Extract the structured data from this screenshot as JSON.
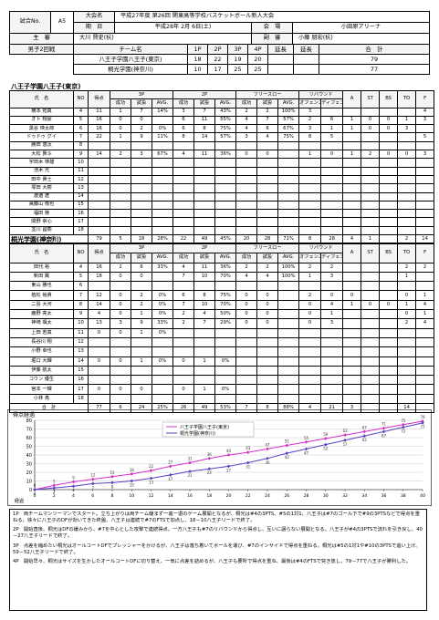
{
  "header": {
    "game_no_label": "試合No.",
    "game_no": "A5",
    "tournament_label": "大会名",
    "tournament": "平成27年度 第26回 関東高等学校バスケットボール新人大会",
    "date_label": "期　日",
    "date": "平成28年 2月 6日(土)",
    "venue_label": "会　場",
    "venue": "小田原アリーナ",
    "referee_label": "主　審",
    "referee": "大川 賢史(杭)",
    "umpire_label": "副　審",
    "umpire": "小藤 朋宏(杭)",
    "category": "男子2回戦"
  },
  "score_table": {
    "headers": [
      "チーム名",
      "1P",
      "2P",
      "3P",
      "4P",
      "延長",
      "延長",
      "合　計"
    ],
    "teams": [
      {
        "name": "八王子学園八王子(東京)",
        "periods": [
          18,
          22,
          19,
          20
        ],
        "total": 79
      },
      {
        "name": "桐光学園(神奈川)",
        "periods": [
          10,
          17,
          25,
          25
        ],
        "total": 77
      }
    ]
  },
  "box_columns": {
    "top": [
      "氏　名",
      "NO",
      "得点",
      "3P",
      "2P",
      "フリースロー",
      "リバウンド",
      "A",
      "ST",
      "BS",
      "TO",
      "F"
    ],
    "sub": [
      "成功",
      "試投",
      "AVG.",
      "成功",
      "試投",
      "AVG.",
      "成功",
      "試投",
      "AVG.",
      "オフェンス",
      "ディフェンス"
    ]
  },
  "teams": [
    {
      "title": "八王子学園八王子(東京)",
      "total_label": "合　計",
      "players": [
        {
          "name": "横本 拓真",
          "no": 4,
          "stats": [
            11,
            1,
            7,
            "14%",
            3,
            7,
            "43%",
            2,
            2,
            "100%",
            3,
            null,
            null,
            null,
            null,
            null,
            4
          ]
        },
        {
          "name": "オト 翔豪",
          "no": 5,
          "stats": [
            16,
            0,
            0,
            null,
            6,
            11,
            "55%",
            4,
            7,
            "57%",
            2,
            6,
            1,
            0,
            0,
            1,
            3
          ]
        },
        {
          "name": "黒谷 瑛太郎",
          "no": 6,
          "stats": [
            16,
            0,
            2,
            "0%",
            6,
            8,
            "75%",
            4,
            6,
            "67%",
            3,
            1,
            1,
            0,
            0,
            3,
            null
          ]
        },
        {
          "name": "ドゥドゥ グイ",
          "no": 7,
          "stats": [
            22,
            1,
            9,
            "11%",
            8,
            14,
            "57%",
            3,
            4,
            "75%",
            8,
            5,
            null,
            null,
            null,
            null,
            5
          ]
        },
        {
          "name": "勝田 悠汰",
          "no": 8,
          "stats": []
        },
        {
          "name": "大松 賢斗",
          "no": 9,
          "stats": [
            14,
            2,
            3,
            "67%",
            4,
            11,
            "36%",
            0,
            0,
            null,
            1,
            0,
            1,
            2,
            0,
            0,
            3
          ]
        },
        {
          "name": "宇田木 瑛雄",
          "no": 10,
          "stats": []
        },
        {
          "name": "池木 光",
          "no": 11,
          "stats": []
        },
        {
          "name": "田中 貴士",
          "no": 12,
          "stats": []
        },
        {
          "name": "塚田 大樹",
          "no": 13,
          "stats": []
        },
        {
          "name": "渡邉 遼",
          "no": 14,
          "stats": []
        },
        {
          "name": "萬藤山 侑也",
          "no": 15,
          "stats": []
        },
        {
          "name": "福田 陵",
          "no": 16,
          "stats": []
        },
        {
          "name": "関野 崇心",
          "no": 17,
          "stats": []
        },
        {
          "name": "並川 昌樹",
          "no": 18,
          "stats": []
        }
      ],
      "totals": [
        79,
        5,
        18,
        "28%",
        22,
        49,
        "45%",
        20,
        28,
        "71%",
        8,
        28,
        4,
        1,
        null,
        2,
        14
      ]
    },
    {
      "title": "桐光学園(神奈川)",
      "total_label": "合　計",
      "players": [
        {
          "name": "田代 裕",
          "no": 4,
          "stats": [
            16,
            2,
            6,
            "33%",
            4,
            11,
            "36%",
            2,
            2,
            "100%",
            2,
            2,
            null,
            null,
            null,
            2,
            2
          ]
        },
        {
          "name": "新田 翼",
          "no": 5,
          "stats": [
            18,
            0,
            0,
            null,
            7,
            10,
            "70%",
            4,
            4,
            "100%",
            1,
            3,
            null,
            null,
            null,
            1,
            null
          ]
        },
        {
          "name": "東山 勝也",
          "no": 6,
          "stats": []
        },
        {
          "name": "植松 裕貴",
          "no": 7,
          "stats": [
            12,
            0,
            2,
            "0%",
            6,
            8,
            "75%",
            0,
            0,
            null,
            2,
            0,
            0,
            null,
            null,
            0,
            1
          ]
        },
        {
          "name": "二島 大河",
          "no": 8,
          "stats": [
            14,
            0,
            2,
            "0%",
            7,
            10,
            "70%",
            0,
            0,
            null,
            0,
            4,
            1,
            0,
            0,
            1,
            4
          ]
        },
        {
          "name": "鹿野 亮太",
          "no": 9,
          "stats": [
            4,
            0,
            1,
            "0%",
            2,
            4,
            "50%",
            0,
            0,
            null,
            0,
            1,
            null,
            null,
            null,
            0,
            1
          ]
        },
        {
          "name": "神崎 颯太",
          "no": 10,
          "stats": [
            13,
            3,
            9,
            "33%",
            2,
            7,
            "29%",
            0,
            0,
            null,
            0,
            3,
            null,
            null,
            null,
            2,
            4
          ]
        },
        {
          "name": "上田 若真",
          "no": 11,
          "stats": [
            0,
            0,
            1,
            "0%"
          ]
        },
        {
          "name": "長谷川 翔",
          "no": 12,
          "stats": []
        },
        {
          "name": "小野 幸也",
          "no": 13,
          "stats": []
        },
        {
          "name": "堀口 大輝",
          "no": 14,
          "stats": [
            0,
            0,
            1,
            "0%",
            0,
            1,
            "0%"
          ]
        },
        {
          "name": "伊藤 航太",
          "no": 15,
          "stats": []
        },
        {
          "name": "コウン 優生",
          "no": 16,
          "stats": []
        },
        {
          "name": "宮本 一輝",
          "no": 17,
          "stats": [
            0,
            0,
            0,
            null,
            0,
            1,
            "0%"
          ]
        },
        {
          "name": "小林 亮",
          "no": 18,
          "stats": []
        }
      ],
      "totals": [
        77,
        6,
        24,
        "25%",
        26,
        49,
        "53%",
        7,
        8,
        "88%",
        4,
        21,
        3,
        null,
        null,
        14,
        null
      ]
    }
  ],
  "chart_data": {
    "type": "line",
    "title": "得点経過",
    "x_label": "経過",
    "x": [
      0,
      2,
      4,
      6,
      8,
      10,
      12,
      14,
      16,
      18,
      20,
      22,
      24,
      26,
      28,
      30,
      32,
      34,
      36,
      38,
      40
    ],
    "xlim": [
      0,
      40
    ],
    "xticks": [
      0,
      2,
      4,
      6,
      8,
      10,
      12,
      14,
      16,
      18,
      20,
      22,
      24,
      26,
      28,
      30,
      32,
      34,
      36,
      38,
      40
    ],
    "ylim": [
      0,
      80
    ],
    "yticks": [
      0,
      10,
      20,
      30,
      40,
      50,
      60,
      70,
      80
    ],
    "grid": true,
    "legend": "top",
    "series": [
      {
        "name": "八王子学園八王子(東京)",
        "color": "#d42fc8",
        "values": [
          0,
          5,
          9,
          12,
          15,
          18,
          22,
          27,
          31,
          36,
          40,
          43,
          47,
          51,
          55,
          59,
          63,
          67,
          71,
          75,
          79
        ]
      },
      {
        "name": "桐光学園(神奈川)",
        "color": "#5b3fc4",
        "values": [
          0,
          2,
          4,
          7,
          8,
          10,
          13,
          17,
          21,
          24,
          27,
          31,
          36,
          42,
          47,
          52,
          57,
          62,
          67,
          72,
          77
        ]
      }
    ]
  },
  "notes": [
    "1P　両チームマンツーマンでスタート。立ち上がりは両チーム緩まず一進一退のゲーム展開となるが、桐光は#4の3PTS、#5の1対1、八王子は#7のゴール下で#9の3PTSなどで得点を重ねる。徐々に八王子のDFが効いてきた終盤、八王子は連続で#7のFTSで加点し、18－10八王子リードで終了。",
    "2P　開始直後、桐光はDFの緩みから、#7を中心とした攻撃で連続得点。一方八王子も#7のリバウンドから得点し、互いに譲らない展開となる。八王子が#4の3PTSで流れを引き戻し、40－27八王子リードで終了。",
    "3P　点差を縮めたい桐光はオールコートDFでプレッシャーをかけるが、八王子は落ち着いてボールを運び、#7のインサイドで得点を重ねる。桐光は#5の1対1や#10の3PTSで追い上げ、59－52八王子リードで終了。",
    "4P　開始早々、桐光はサイズを生かしたオールコートDFに切り替え、一気に点差を詰めるが、八王子も要所で得点を重ね、最後は#4のFTSで突き放し、79－77で八王子が勝利した。"
  ]
}
